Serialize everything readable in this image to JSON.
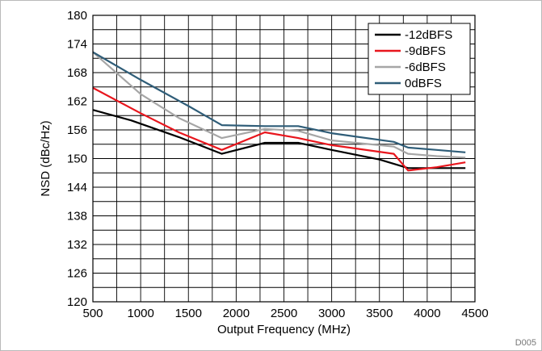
{
  "chart_data": {
    "type": "line",
    "xlabel": "Output Frequency (MHz)",
    "ylabel": "NSD (dBc/Hz)",
    "xlim": [
      500,
      4500
    ],
    "ylim": [
      120,
      180
    ],
    "x_ticks": [
      500,
      1000,
      1500,
      2000,
      2500,
      3000,
      3500,
      4000,
      4500
    ],
    "y_ticks": [
      120,
      126,
      132,
      138,
      144,
      150,
      156,
      162,
      168,
      174,
      180
    ],
    "x_minor_step": 250,
    "y_minor_step": 3,
    "grid": true,
    "legend_position": "top-right",
    "figure_id": "D005",
    "series": [
      {
        "name": "-12dBFS",
        "color": "#000000",
        "points": [
          [
            500,
            160.2
          ],
          [
            900,
            158.0
          ],
          [
            1400,
            154.5
          ],
          [
            1850,
            151.0
          ],
          [
            2300,
            153.3
          ],
          [
            2650,
            153.3
          ],
          [
            3000,
            151.8
          ],
          [
            3500,
            149.8
          ],
          [
            3800,
            148.0
          ],
          [
            4100,
            148.0
          ],
          [
            4400,
            148.0
          ]
        ]
      },
      {
        "name": "-9dBFS",
        "color": "#e8161d",
        "points": [
          [
            500,
            164.8
          ],
          [
            1000,
            159.5
          ],
          [
            1400,
            155.5
          ],
          [
            1850,
            151.8
          ],
          [
            2300,
            155.5
          ],
          [
            2650,
            154.3
          ],
          [
            3000,
            152.8
          ],
          [
            3650,
            151.0
          ],
          [
            3800,
            147.5
          ],
          [
            4100,
            148.2
          ],
          [
            4400,
            149.2
          ]
        ]
      },
      {
        "name": "-6dBFS",
        "color": "#a6a6a6",
        "points": [
          [
            500,
            172.3
          ],
          [
            1000,
            163.5
          ],
          [
            1400,
            158.5
          ],
          [
            1850,
            154.3
          ],
          [
            2300,
            156.2
          ],
          [
            2650,
            155.8
          ],
          [
            3000,
            153.8
          ],
          [
            3650,
            152.5
          ],
          [
            3800,
            151.0
          ],
          [
            4100,
            150.5
          ],
          [
            4400,
            150.2
          ]
        ]
      },
      {
        "name": "0dBFS",
        "color": "#2f5d78",
        "points": [
          [
            500,
            172.3
          ],
          [
            1000,
            166.5
          ],
          [
            1500,
            161.0
          ],
          [
            1850,
            157.0
          ],
          [
            2300,
            156.8
          ],
          [
            2650,
            156.8
          ],
          [
            3000,
            155.3
          ],
          [
            3650,
            153.5
          ],
          [
            3800,
            152.3
          ],
          [
            4100,
            151.8
          ],
          [
            4400,
            151.3
          ]
        ]
      }
    ]
  }
}
